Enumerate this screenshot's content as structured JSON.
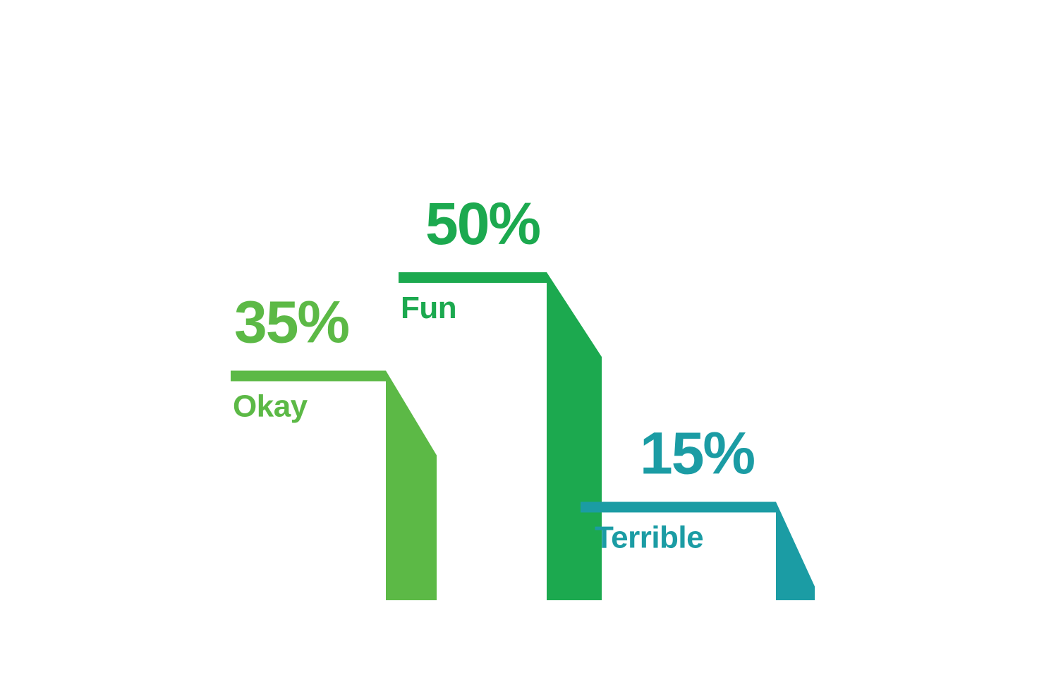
{
  "chart_data": {
    "type": "bar",
    "title": "",
    "xlabel": "",
    "ylabel": "",
    "grid": false,
    "legend": "none",
    "categories": [
      "Okay",
      "Fun",
      "Terrible"
    ],
    "values": [
      35,
      50,
      15
    ],
    "value_labels": [
      "35%",
      "50%",
      "15%"
    ],
    "unit": "%",
    "colors": [
      "#5cb946",
      "#1ca94f",
      "#1b9ca4"
    ]
  }
}
